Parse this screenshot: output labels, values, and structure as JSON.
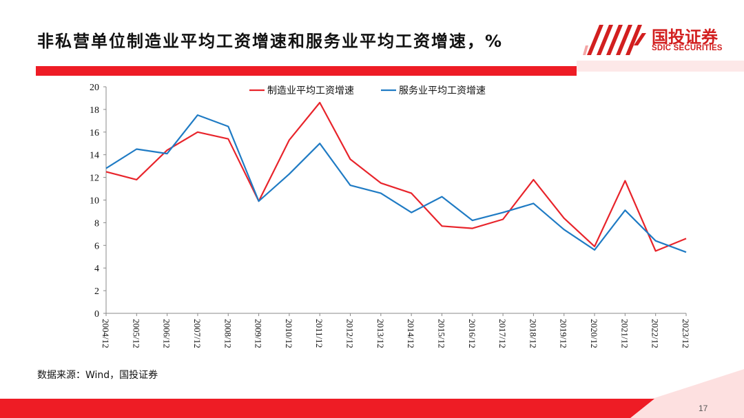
{
  "slide": {
    "title": "非私营单位制造业平均工资增速和服务业平均工资增速，%",
    "source": "数据来源：Wind，国投证券",
    "page_number": "17"
  },
  "logo": {
    "name_cn": "国投证券",
    "name_en": "SDIC SECURITIES",
    "brand_color": "#d21f1f"
  },
  "colors": {
    "accent_red": "#ee1c25",
    "line_manufacturing": "#e8242b",
    "line_services": "#1f7bc4"
  },
  "chart_data": {
    "type": "line",
    "categories": [
      "2004/12",
      "2005/12",
      "2006/12",
      "2007/12",
      "2008/12",
      "2009/12",
      "2010/12",
      "2011/12",
      "2012/12",
      "2013/12",
      "2014/12",
      "2015/12",
      "2016/12",
      "2017/12",
      "2018/12",
      "2019/12",
      "2020/12",
      "2021/12",
      "2022/12",
      "2023/12"
    ],
    "series": [
      {
        "name": "制造业平均工资增速",
        "color": "#e8242b",
        "values": [
          12.5,
          11.8,
          14.4,
          16.0,
          15.4,
          9.9,
          15.3,
          18.6,
          13.6,
          11.5,
          10.6,
          7.7,
          7.5,
          8.3,
          11.8,
          8.4,
          5.9,
          11.7,
          5.5,
          6.6
        ]
      },
      {
        "name": "服务业平均工资增速",
        "color": "#1f7bc4",
        "values": [
          12.8,
          14.5,
          14.1,
          17.5,
          16.5,
          9.9,
          12.3,
          15.0,
          11.3,
          10.6,
          8.9,
          10.3,
          8.2,
          8.9,
          9.7,
          7.4,
          5.6,
          9.1,
          6.4,
          5.4
        ]
      }
    ],
    "ylim": [
      0,
      20
    ],
    "yticks": [
      "0",
      "2",
      "4",
      "6",
      "8",
      "10",
      "12",
      "14",
      "16",
      "18",
      "20"
    ],
    "legend_position": "top-center",
    "grid": false
  }
}
